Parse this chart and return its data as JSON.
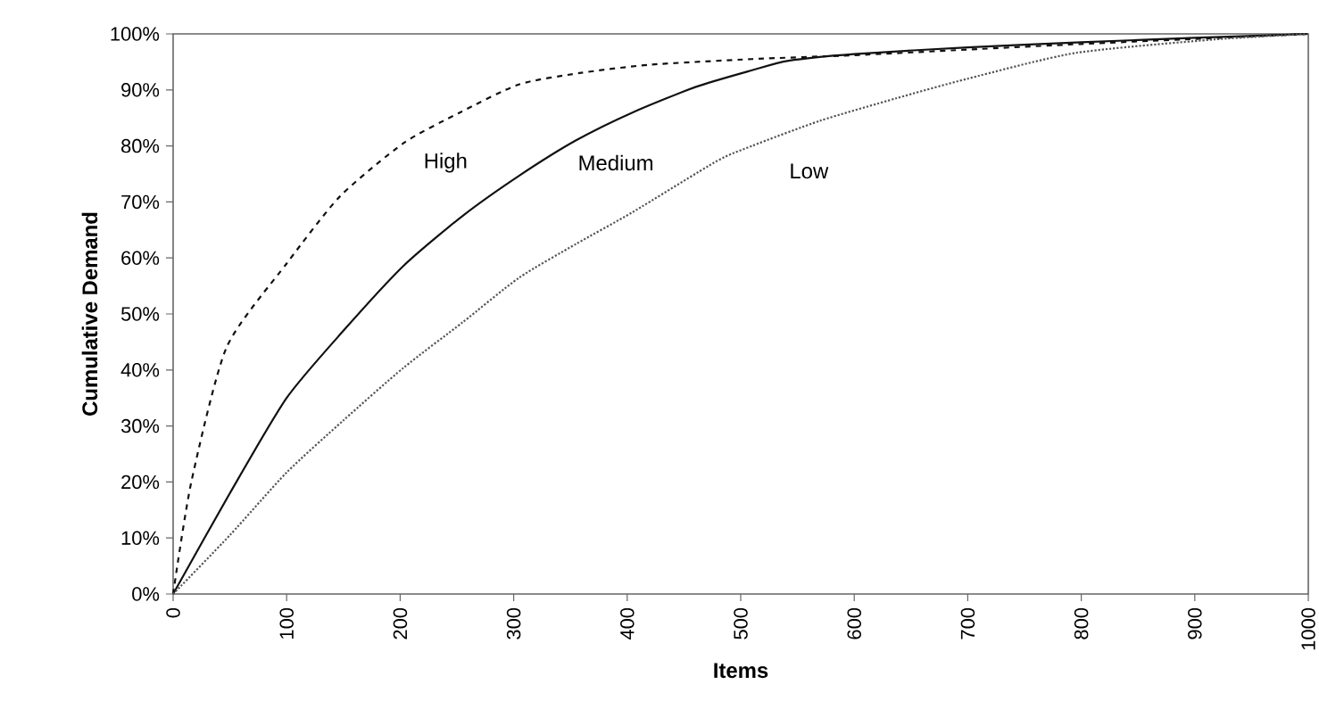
{
  "chart_data": {
    "type": "line",
    "xlabel": "Items",
    "ylabel": "Cumulative Demand",
    "xlim": [
      0,
      1000
    ],
    "ylim": [
      0,
      100
    ],
    "xticks": [
      0,
      100,
      200,
      300,
      400,
      500,
      600,
      700,
      800,
      900,
      1000
    ],
    "yticks": [
      {
        "value": 0,
        "label": "0%"
      },
      {
        "value": 10,
        "label": "10%"
      },
      {
        "value": 20,
        "label": "20%"
      },
      {
        "value": 30,
        "label": "30%"
      },
      {
        "value": 40,
        "label": "40%"
      },
      {
        "value": 50,
        "label": "50%"
      },
      {
        "value": 60,
        "label": "60%"
      },
      {
        "value": 70,
        "label": "70%"
      },
      {
        "value": 80,
        "label": "80%"
      },
      {
        "value": 90,
        "label": "90%"
      },
      {
        "value": 100,
        "label": "100%"
      }
    ],
    "grid": false,
    "marker": "none",
    "series": [
      {
        "color": "#111111",
        "line_style": "dashed",
        "x": [
          0,
          16,
          47,
          100,
          147,
          203,
          253,
          305,
          358,
          420,
          510,
          600,
          700,
          800,
          900,
          1000
        ],
        "values": [
          0,
          20,
          44,
          59,
          71,
          80.5,
          86,
          91,
          93,
          94.5,
          95.5,
          96.2,
          97.2,
          98.2,
          99.1,
          100
        ]
      },
      {
        "color": "#111111",
        "line_style": "solid",
        "x": [
          0,
          50,
          100,
          150,
          203,
          255,
          305,
          355,
          405,
          460,
          510,
          542,
          600,
          700,
          800,
          900,
          1000
        ],
        "values": [
          0,
          18,
          35,
          47,
          58.6,
          67.5,
          74.7,
          81,
          86,
          90.5,
          93.5,
          95.2,
          96.4,
          97.6,
          98.5,
          99.3,
          100
        ]
      },
      {
        "color": "#555555",
        "line_style": "dotted",
        "x": [
          0,
          50,
          100,
          150,
          203,
          255,
          305,
          355,
          405,
          479,
          510,
          570,
          637,
          700,
          795,
          917,
          1000
        ],
        "values": [
          0,
          10.5,
          21.7,
          31,
          40.4,
          48.5,
          56.5,
          62.5,
          68.2,
          77.3,
          80,
          84.5,
          88.5,
          92,
          96.6,
          99,
          100
        ]
      }
    ],
    "annotations": [
      "High",
      "Medium",
      "Low"
    ]
  }
}
